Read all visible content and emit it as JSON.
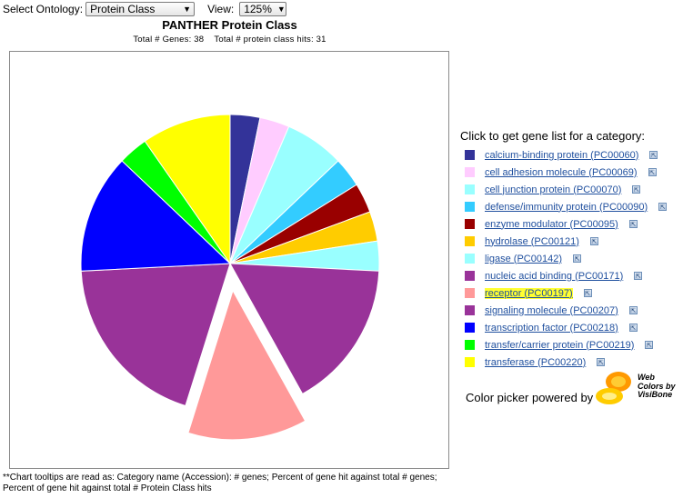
{
  "toolbar": {
    "ontology_label": "Select Ontology:",
    "ontology_value": "Protein Class",
    "view_label": "View:",
    "view_value": "125%"
  },
  "legend_heading": "Click to get gene list for a category:",
  "powered_by": "Color picker powered by",
  "logo_text": [
    "Web",
    "Colors by",
    "VisiBone"
  ],
  "footnote": "**Chart tooltips are read as: Category name (Accession): # genes; Percent of gene hit against total # genes; Percent of gene hit against total # Protein Class hits",
  "chart_data": {
    "type": "pie",
    "title": "PANTHER Protein Class",
    "subtitle": "Total # Genes: 38    Total # protein class hits: 31",
    "exploded": "receptor (PC00197)",
    "legend_placement": "right",
    "slices": [
      {
        "label": "calcium-binding protein (PC00060)",
        "value": 1,
        "color": "#333399"
      },
      {
        "label": "cell adhesion molecule (PC00069)",
        "value": 1,
        "color": "#ffccff"
      },
      {
        "label": "cell junction protein (PC00070)",
        "value": 2,
        "color": "#99ffff"
      },
      {
        "label": "defense/immunity protein (PC00090)",
        "value": 1,
        "color": "#33ccff"
      },
      {
        "label": "enzyme modulator (PC00095)",
        "value": 1,
        "color": "#990000"
      },
      {
        "label": "hydrolase (PC00121)",
        "value": 1,
        "color": "#ffcc00"
      },
      {
        "label": "ligase (PC00142)",
        "value": 1,
        "color": "#99ffff"
      },
      {
        "label": "nucleic acid binding (PC00171)",
        "value": 5,
        "color": "#993399"
      },
      {
        "label": "receptor (PC00197)",
        "value": 4,
        "color": "#ff9999"
      },
      {
        "label": "signaling molecule (PC00207)",
        "value": 6,
        "color": "#993399"
      },
      {
        "label": "transcription factor (PC00218)",
        "value": 4,
        "color": "#0000ff"
      },
      {
        "label": "transfer/carrier protein (PC00219)",
        "value": 1,
        "color": "#00ff00"
      },
      {
        "label": "transferase (PC00220)",
        "value": 3,
        "color": "#ffff00"
      }
    ]
  }
}
